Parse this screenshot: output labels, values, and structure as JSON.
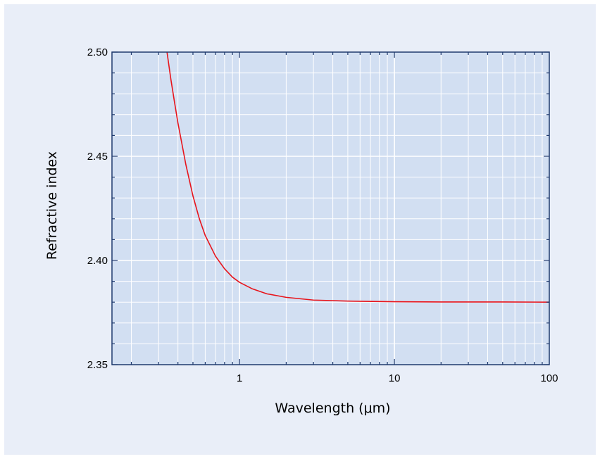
{
  "chart_data": {
    "type": "line",
    "title": "",
    "xlabel": "Wavelength (μm)",
    "ylabel": "Refractive index",
    "x_scale": "log",
    "xlim": [
      0.15,
      100
    ],
    "ylim": [
      2.35,
      2.5
    ],
    "x_ticks": [
      {
        "value": 1,
        "label": "1"
      },
      {
        "value": 10,
        "label": "10"
      },
      {
        "value": 100,
        "label": "100"
      }
    ],
    "y_ticks": [
      {
        "value": 2.35,
        "label": "2.35"
      },
      {
        "value": 2.4,
        "label": "2.40"
      },
      {
        "value": 2.45,
        "label": "2.45"
      },
      {
        "value": 2.5,
        "label": "2.50"
      }
    ],
    "grid": true,
    "series": [
      {
        "color": "#e8141b",
        "x": [
          0.34,
          0.36,
          0.38,
          0.4,
          0.45,
          0.5,
          0.55,
          0.6,
          0.7,
          0.8,
          0.9,
          1.0,
          1.2,
          1.5,
          2.0,
          3.0,
          5.0,
          8.0,
          10,
          20,
          50,
          100
        ],
        "y": [
          2.5,
          2.487,
          2.476,
          2.466,
          2.446,
          2.431,
          2.42,
          2.412,
          2.402,
          2.396,
          2.392,
          2.3895,
          2.3865,
          2.384,
          2.3823,
          2.381,
          2.3805,
          2.3803,
          2.3802,
          2.3801,
          2.3801,
          2.38
        ]
      }
    ],
    "colors": {
      "background": "#e9eef8",
      "plot_area": "#d2dff2",
      "grid": "#ffffff",
      "axis": "#1f3a6e"
    }
  }
}
